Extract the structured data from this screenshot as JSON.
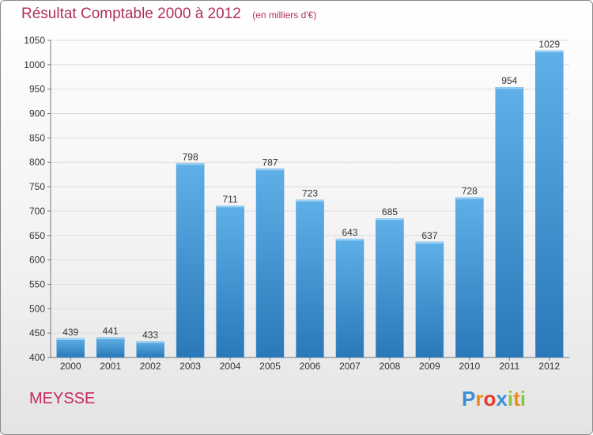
{
  "chart_data": {
    "type": "bar",
    "title": "Résultat Comptable 2000 à 2012",
    "subtitle": "(en milliers d'€)",
    "categories": [
      "2000",
      "2001",
      "2002",
      "2003",
      "2004",
      "2005",
      "2006",
      "2007",
      "2008",
      "2009",
      "2010",
      "2011",
      "2012"
    ],
    "values": [
      439,
      441,
      433,
      798,
      711,
      787,
      723,
      643,
      685,
      637,
      728,
      954,
      1029
    ],
    "ylim": [
      400,
      1050
    ],
    "yticks": [
      400,
      450,
      500,
      550,
      600,
      650,
      700,
      750,
      800,
      850,
      900,
      950,
      1000,
      1050
    ],
    "xlabel": "",
    "ylabel": "",
    "grid": true
  },
  "location": "MEYSSE",
  "brand": {
    "name": "Proxiti",
    "letters": [
      {
        "char": "P",
        "color": "#3a8fd8"
      },
      {
        "char": "r",
        "color": "#f08a1c"
      },
      {
        "char": "o",
        "color": "#e23b2a"
      },
      {
        "char": "x",
        "color": "#3a8fd8"
      },
      {
        "char": "i",
        "color": "#8cc63e"
      },
      {
        "char": "t",
        "color": "#f08a1c"
      },
      {
        "char": "i",
        "color": "#8cc63e"
      }
    ]
  },
  "colors": {
    "bar_top": "#5fb0e8",
    "bar_bottom": "#2a78b8",
    "title": "#b0305a",
    "grid": "#dddddd"
  }
}
